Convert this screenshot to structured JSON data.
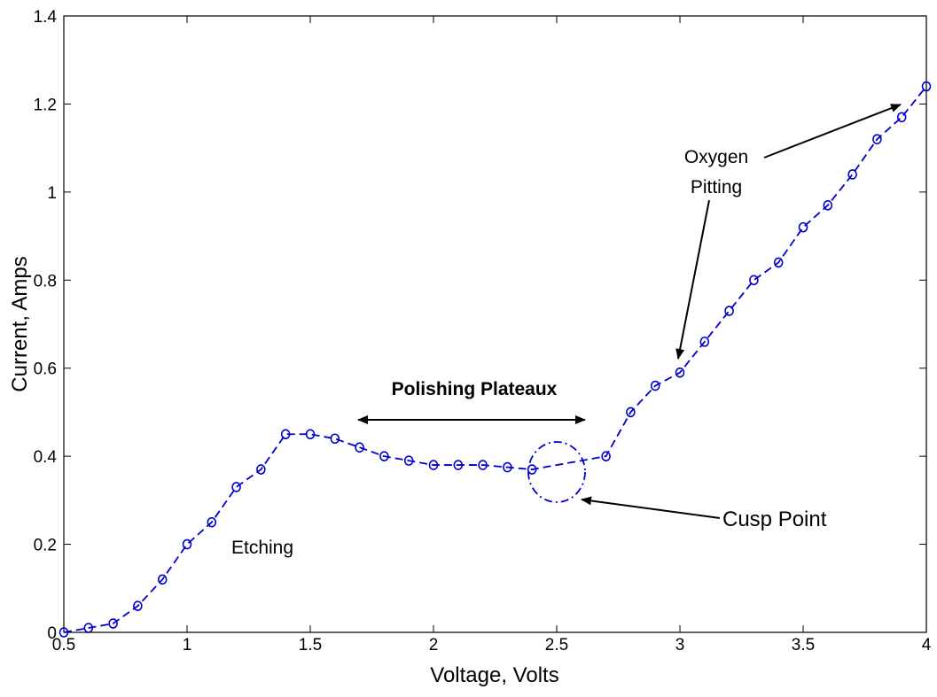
{
  "chart_data": {
    "type": "line",
    "xlabel": "Voltage, Volts",
    "ylabel": "Current, Amps",
    "xlim": [
      0.5,
      4
    ],
    "ylim": [
      0,
      1.4
    ],
    "xticks": [
      "0.5",
      "1",
      "1.5",
      "2",
      "2.5",
      "3",
      "3.5",
      "4"
    ],
    "yticks": [
      "0",
      "0.2",
      "0.4",
      "0.6",
      "0.8",
      "1",
      "1.2",
      "1.4"
    ],
    "grid": false,
    "series": [
      {
        "x": [
          0.5,
          0.6,
          0.7,
          0.8,
          0.9,
          1.0,
          1.1,
          1.2,
          1.3,
          1.4,
          1.5,
          1.6,
          1.7,
          1.8,
          1.9,
          2.0,
          2.1,
          2.2,
          2.3,
          2.4,
          2.7,
          2.8,
          2.9,
          3.0,
          3.1,
          3.2,
          3.3,
          3.4,
          3.5,
          3.6,
          3.7,
          3.8,
          3.9,
          4.0
        ],
        "y": [
          0.0,
          0.01,
          0.02,
          0.06,
          0.12,
          0.2,
          0.25,
          0.33,
          0.37,
          0.45,
          0.45,
          0.44,
          0.42,
          0.4,
          0.39,
          0.38,
          0.38,
          0.38,
          0.375,
          0.37,
          0.4,
          0.5,
          0.56,
          0.59,
          0.66,
          0.73,
          0.8,
          0.84,
          0.92,
          0.97,
          1.04,
          1.12,
          1.17,
          1.24
        ]
      }
    ],
    "annotations": {
      "etching": "Etching",
      "polishing": "Polishing Plateaux",
      "cusp": "Cusp Point",
      "oxygen_line1": "Oxygen",
      "oxygen_line2": "Pitting"
    },
    "colors": {
      "series": "#0000cc",
      "text": "#000000"
    }
  }
}
